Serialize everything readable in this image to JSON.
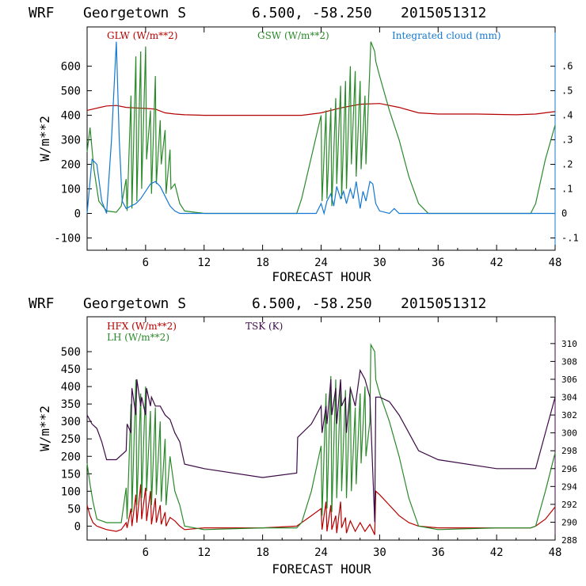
{
  "colors": {
    "red": "#b50000",
    "green": "#2a8a2a",
    "blue": "#1478d2",
    "purple": "#3c0a46"
  },
  "chart_data": [
    {
      "id": "top",
      "type": "line",
      "header": {
        "model": "WRF",
        "station": "Georgetown S",
        "coords": "6.500, -58.250",
        "run": "2015051312"
      },
      "xlabel": "FORECAST HOUR",
      "ylabel": "W/m**2",
      "xlim": [
        0,
        48
      ],
      "xticks": [
        "6",
        "12",
        "18",
        "24",
        "30",
        "36",
        "42",
        "48"
      ],
      "ylim": [
        -150,
        760
      ],
      "yticks": [
        "-100",
        "0",
        "100",
        "200",
        "300",
        "400",
        "500",
        "600"
      ],
      "y2lim": [
        -0.15,
        0.76
      ],
      "y2ticks": [
        "-.1",
        "0",
        ".1",
        ".2",
        ".3",
        ".4",
        ".5",
        ".6"
      ],
      "legend": [
        {
          "label": "GLW (W/m**2)",
          "color": "red"
        },
        {
          "label": "GSW (W/m**2)",
          "color": "green"
        },
        {
          "label": "Integrated cloud (mm)",
          "color": "blue"
        }
      ],
      "series": [
        {
          "name": "GLW",
          "axis": "left",
          "color": "red",
          "x": [
            0,
            2,
            3,
            4,
            5,
            6,
            7,
            8,
            9,
            10,
            12,
            14,
            18,
            20,
            22,
            24,
            26,
            28,
            30,
            32,
            34,
            36,
            40,
            44,
            46,
            48
          ],
          "y": [
            420,
            438,
            440,
            432,
            430,
            428,
            425,
            410,
            405,
            402,
            400,
            400,
            400,
            400,
            400,
            410,
            430,
            445,
            448,
            432,
            410,
            405,
            405,
            402,
            405,
            415
          ]
        },
        {
          "name": "GSW",
          "axis": "left",
          "color": "green",
          "x": [
            0,
            0.3,
            0.7,
            1.2,
            2,
            3,
            3.5,
            4.0,
            4.1,
            4.5,
            4.6,
            5.0,
            5.1,
            5.5,
            5.6,
            6.0,
            6.1,
            6.5,
            6.6,
            7.0,
            7.1,
            7.5,
            7.6,
            8.0,
            8.1,
            8.5,
            8.6,
            9.0,
            9.5,
            10,
            11,
            12,
            18,
            21.5,
            22,
            23,
            24,
            24.1,
            24.5,
            24.6,
            25,
            25.1,
            25.5,
            25.6,
            26,
            26.1,
            26.5,
            26.6,
            27,
            27.1,
            27.5,
            27.6,
            28,
            28.1,
            28.5,
            28.6,
            29,
            29.1,
            29.5,
            29.6,
            30,
            31,
            32,
            33,
            34,
            35,
            36,
            42,
            45.5,
            46,
            47,
            48
          ],
          "y": [
            250,
            350,
            180,
            50,
            10,
            5,
            30,
            140,
            10,
            480,
            20,
            640,
            50,
            660,
            100,
            680,
            220,
            420,
            80,
            560,
            120,
            380,
            200,
            340,
            80,
            260,
            100,
            120,
            40,
            10,
            5,
            0,
            0,
            0,
            60,
            230,
            400,
            50,
            420,
            60,
            430,
            30,
            470,
            120,
            520,
            60,
            540,
            100,
            600,
            200,
            580,
            150,
            540,
            180,
            480,
            200,
            600,
            700,
            660,
            620,
            560,
            420,
            300,
            150,
            40,
            0,
            0,
            0,
            0,
            40,
            220,
            360
          ]
        },
        {
          "name": "Integrated cloud",
          "axis": "right",
          "color": "blue",
          "x": [
            0,
            0.5,
            1,
            1.5,
            2,
            2.5,
            3,
            3.3,
            3.6,
            4,
            4.5,
            5,
            5.5,
            6,
            6.5,
            7,
            7.5,
            8,
            8.5,
            9,
            9.5,
            10,
            12,
            18,
            23.5,
            24,
            24.3,
            24.6,
            25,
            25.3,
            25.6,
            26,
            26.3,
            26.6,
            27,
            27.3,
            27.6,
            28,
            28.3,
            28.6,
            29,
            29.3,
            29.6,
            30,
            31,
            31.5,
            32,
            33,
            36,
            42,
            48
          ],
          "y": [
            0.0,
            0.22,
            0.2,
            0.05,
            0.0,
            0.3,
            0.7,
            0.3,
            0.05,
            0.02,
            0.03,
            0.04,
            0.06,
            0.09,
            0.12,
            0.13,
            0.11,
            0.07,
            0.03,
            0.01,
            0.0,
            0.0,
            0.0,
            0.0,
            0.0,
            0.04,
            0.0,
            0.05,
            0.08,
            0.03,
            0.11,
            0.06,
            0.09,
            0.04,
            0.1,
            0.06,
            0.13,
            0.02,
            0.09,
            0.05,
            0.13,
            0.12,
            0.04,
            0.01,
            0.0,
            0.02,
            0.0,
            0.0,
            0.0,
            0.0,
            0.0
          ]
        }
      ]
    },
    {
      "id": "bottom",
      "type": "line",
      "header": {
        "model": "WRF",
        "station": "Georgetown S",
        "coords": "6.500, -58.250",
        "run": "2015051312"
      },
      "xlabel": "FORECAST HOUR",
      "ylabel": "W/m**2",
      "xlim": [
        0,
        48
      ],
      "xticks": [
        "6",
        "12",
        "18",
        "24",
        "30",
        "36",
        "42",
        "48"
      ],
      "ylim": [
        -40,
        600
      ],
      "yticks": [
        "0",
        "50",
        "100",
        "150",
        "200",
        "250",
        "300",
        "350",
        "400",
        "450",
        "500"
      ],
      "y2lim": [
        288,
        313
      ],
      "y2ticks": [
        "288",
        "290",
        "292",
        "294",
        "296",
        "298",
        "300",
        "302",
        "304",
        "306",
        "308",
        "310"
      ],
      "legend": [
        {
          "label": "HFX (W/m**2)",
          "color": "red"
        },
        {
          "label": "LH  (W/m**2)",
          "color": "green"
        },
        {
          "label": "TSK (K)",
          "color": "purple"
        }
      ],
      "series": [
        {
          "name": "HFX",
          "axis": "left",
          "color": "red",
          "x": [
            0,
            0.3,
            0.6,
            1,
            2,
            3,
            3.5,
            4,
            4.1,
            4.5,
            4.6,
            5.0,
            5.1,
            5.5,
            5.6,
            6.0,
            6.1,
            6.5,
            6.6,
            7,
            7.1,
            7.5,
            7.6,
            8,
            8.1,
            8.5,
            9,
            9.5,
            10,
            12,
            18,
            21.5,
            22,
            23,
            24,
            24.1,
            24.5,
            24.6,
            25,
            25.1,
            25.5,
            25.6,
            26,
            26.1,
            26.5,
            26.6,
            27,
            27.5,
            28,
            28.5,
            29,
            29.5,
            29.6,
            30,
            31,
            32,
            33,
            34,
            36,
            42,
            45.5,
            46,
            47,
            48
          ],
          "y": [
            60,
            30,
            10,
            0,
            -10,
            -15,
            -10,
            10,
            -5,
            50,
            0,
            90,
            10,
            120,
            20,
            110,
            15,
            100,
            5,
            80,
            10,
            60,
            5,
            40,
            0,
            25,
            15,
            0,
            -10,
            -5,
            -5,
            0,
            10,
            30,
            50,
            -10,
            70,
            -15,
            60,
            -10,
            30,
            -20,
            70,
            -5,
            25,
            -20,
            15,
            -15,
            10,
            -15,
            5,
            -25,
            100,
            90,
            60,
            30,
            10,
            0,
            -5,
            -5,
            -5,
            0,
            20,
            55
          ]
        },
        {
          "name": "LH",
          "axis": "left",
          "color": "green",
          "x": [
            0,
            0.3,
            0.6,
            1,
            2,
            3,
            3.5,
            4,
            4.1,
            4.5,
            4.6,
            5.0,
            5.1,
            5.5,
            5.6,
            6.0,
            6.1,
            6.5,
            6.6,
            7,
            7.1,
            7.5,
            7.6,
            8,
            8.1,
            8.5,
            9,
            9.5,
            10,
            12,
            18,
            21.5,
            22,
            23,
            24,
            24.1,
            24.5,
            24.6,
            25,
            25.1,
            25.5,
            25.6,
            26,
            26.1,
            26.5,
            26.6,
            27,
            27.1,
            27.5,
            27.6,
            28,
            28.1,
            28.5,
            28.6,
            29,
            29.1,
            29.5,
            29.6,
            30,
            31,
            32,
            33,
            34,
            36,
            42,
            45.5,
            46,
            47,
            48
          ],
          "y": [
            180,
            120,
            70,
            20,
            10,
            10,
            10,
            110,
            20,
            350,
            40,
            420,
            60,
            380,
            80,
            400,
            100,
            330,
            60,
            340,
            90,
            300,
            70,
            250,
            60,
            200,
            100,
            60,
            0,
            -10,
            -5,
            -5,
            10,
            100,
            230,
            30,
            380,
            50,
            430,
            40,
            420,
            80,
            400,
            100,
            390,
            80,
            400,
            100,
            340,
            120,
            380,
            180,
            400,
            200,
            300,
            520,
            500,
            420,
            380,
            300,
            200,
            80,
            0,
            -10,
            -5,
            -5,
            0,
            100,
            210
          ]
        },
        {
          "name": "TSK",
          "axis": "right",
          "color": "purple",
          "x": [
            0,
            0.5,
            1,
            1.5,
            2,
            3,
            4,
            4.1,
            4.5,
            4.6,
            5,
            5.1,
            5.5,
            5.6,
            6,
            6.1,
            6.5,
            6.6,
            7,
            7.5,
            8,
            8.5,
            9,
            9.5,
            10,
            12,
            18,
            21.5,
            21.6,
            23,
            24,
            24.1,
            24.5,
            24.6,
            25,
            25.1,
            25.5,
            25.6,
            26,
            26.1,
            26.5,
            26.6,
            27,
            27.5,
            28,
            28.5,
            29,
            29.5,
            29.6,
            30,
            31,
            32,
            33,
            34,
            36,
            42,
            45.5,
            46,
            47,
            48
          ],
          "y": [
            302,
            301,
            300.5,
            299,
            297,
            297,
            298,
            301,
            300,
            305,
            302,
            306,
            303,
            304,
            302,
            305,
            303,
            304,
            303,
            303,
            302,
            301.5,
            300,
            299,
            296.5,
            296,
            295,
            295.5,
            299.5,
            301,
            303,
            300,
            303,
            301,
            306,
            302,
            305,
            301,
            306,
            303,
            304,
            300,
            305,
            303,
            307,
            306,
            304,
            290,
            304,
            304,
            303.5,
            302,
            300,
            298,
            297,
            296,
            296,
            296,
            300,
            304
          ]
        }
      ]
    }
  ]
}
